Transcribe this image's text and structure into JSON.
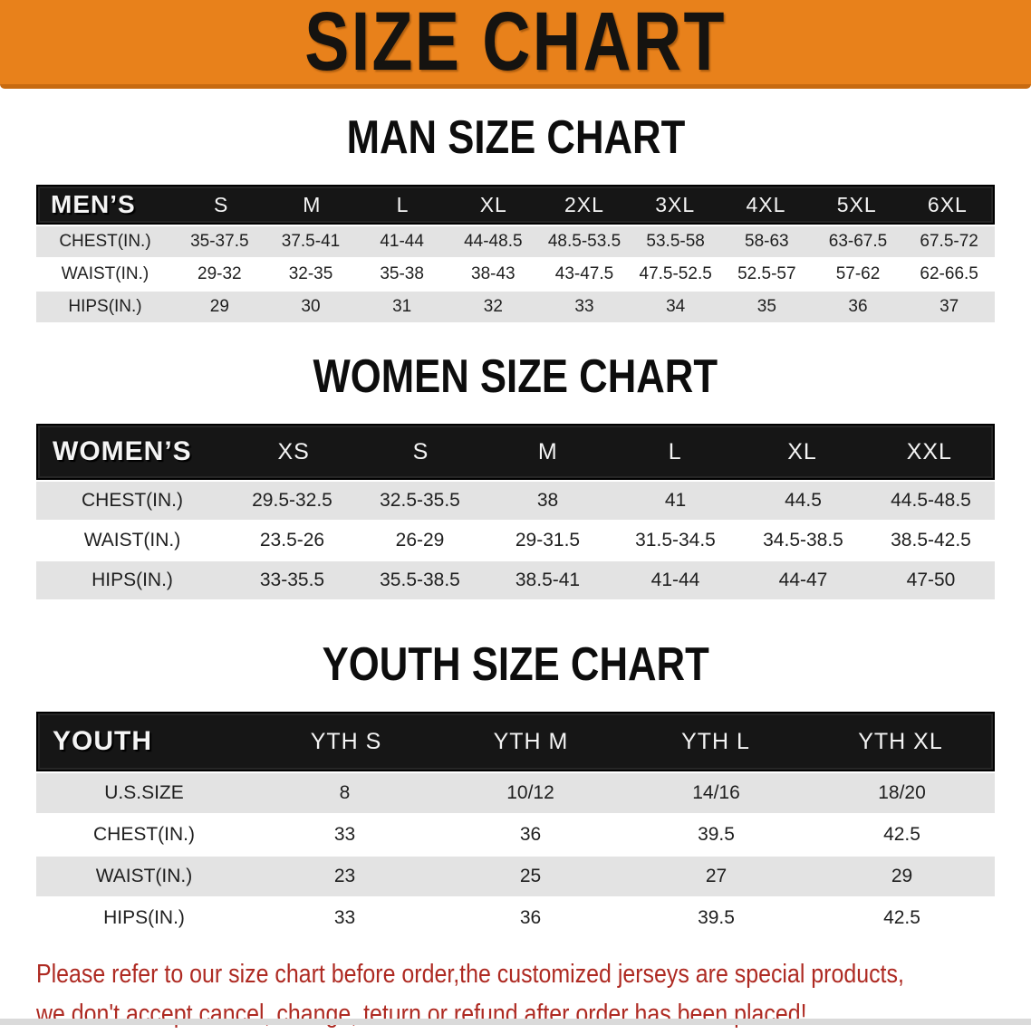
{
  "banner": {
    "title": "SIZE CHART"
  },
  "men": {
    "title": "MAN SIZE CHART",
    "header_label": "MEN’S",
    "columns": [
      "S",
      "M",
      "L",
      "XL",
      "2XL",
      "3XL",
      "4XL",
      "5XL",
      "6XL"
    ],
    "rows": [
      {
        "label": "CHEST(IN.)",
        "values": [
          "35-37.5",
          "37.5-41",
          "41-44",
          "44-48.5",
          "48.5-53.5",
          "53.5-58",
          "58-63",
          "63-67.5",
          "67.5-72"
        ]
      },
      {
        "label": "WAIST(IN.)",
        "values": [
          "29-32",
          "32-35",
          "35-38",
          "38-43",
          "43-47.5",
          "47.5-52.5",
          "52.5-57",
          "57-62",
          "62-66.5"
        ]
      },
      {
        "label": "HIPS(IN.)",
        "values": [
          "29",
          "30",
          "31",
          "32",
          "33",
          "34",
          "35",
          "36",
          "37"
        ]
      }
    ]
  },
  "women": {
    "title": "WOMEN SIZE CHART",
    "header_label": "WOMEN’S",
    "columns": [
      "XS",
      "S",
      "M",
      "L",
      "XL",
      "XXL"
    ],
    "rows": [
      {
        "label": "CHEST(IN.)",
        "values": [
          "29.5-32.5",
          "32.5-35.5",
          "38",
          "41",
          "44.5",
          "44.5-48.5"
        ]
      },
      {
        "label": "WAIST(IN.)",
        "values": [
          "23.5-26",
          "26-29",
          "29-31.5",
          "31.5-34.5",
          "34.5-38.5",
          "38.5-42.5"
        ]
      },
      {
        "label": "HIPS(IN.)",
        "values": [
          "33-35.5",
          "35.5-38.5",
          "38.5-41",
          "41-44",
          "44-47",
          "47-50"
        ]
      }
    ]
  },
  "youth": {
    "title": "YOUTH SIZE CHART",
    "header_label": "YOUTH",
    "columns": [
      "YTH S",
      "YTH M",
      "YTH L",
      "YTH XL"
    ],
    "rows": [
      {
        "label": "U.S.SIZE",
        "values": [
          "8",
          "10/12",
          "14/16",
          "18/20"
        ]
      },
      {
        "label": "CHEST(IN.)",
        "values": [
          "33",
          "36",
          "39.5",
          "42.5"
        ]
      },
      {
        "label": "WAIST(IN.)",
        "values": [
          "23",
          "25",
          "27",
          "29"
        ]
      },
      {
        "label": "HIPS(IN.)",
        "values": [
          "33",
          "36",
          "39.5",
          "42.5"
        ]
      }
    ]
  },
  "notice": {
    "line1": "Please refer to our size chart before order,the customized jerseys are special products,",
    "line2": "we don't accept cancel, change, teturn or refund after order has been placed!"
  },
  "colors": {
    "banner_bg": "#E8811B",
    "banner_border": "#C76A10",
    "banner_text": "#151310",
    "table_header_bg": "#161616",
    "table_header_text": "#F4F4F4",
    "stripe_gray": "#E3E3E3",
    "notice_red": "#AE2A22",
    "bottom_bar": "#DADADA"
  }
}
